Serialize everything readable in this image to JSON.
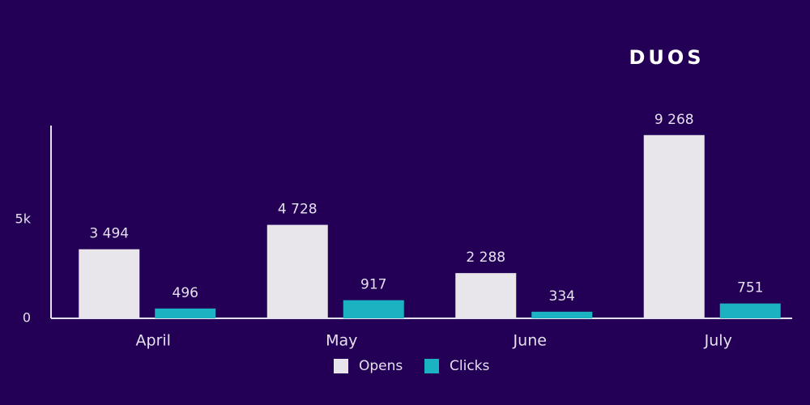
{
  "chart_data": {
    "type": "bar",
    "title": "DUOS",
    "categories": [
      "April",
      "May",
      "June",
      "July"
    ],
    "series": [
      {
        "name": "Opens",
        "color": "#e8e6eb",
        "values": [
          3494,
          4728,
          2288,
          9268
        ],
        "value_labels": [
          "3 494",
          "4 728",
          "2 288",
          "9 268"
        ]
      },
      {
        "name": "Clicks",
        "color": "#1bb3c2",
        "values": [
          496,
          917,
          334,
          751
        ],
        "value_labels": [
          "496",
          "917",
          "334",
          "751"
        ]
      }
    ],
    "ylim": [
      0,
      9750
    ],
    "yticks": [
      0,
      {
        "value": 5000,
        "label": "5k"
      }
    ],
    "grid": false,
    "legend": "bottom"
  }
}
